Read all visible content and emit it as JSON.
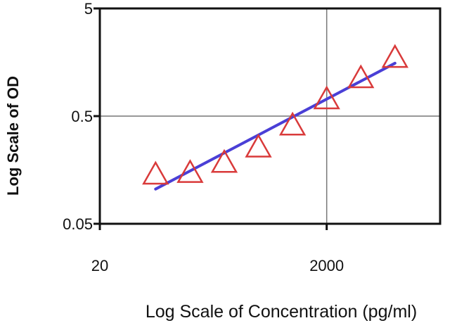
{
  "chart_data": {
    "type": "scatter",
    "xlabel": "Log Scale of Concentration  (pg/ml)",
    "ylabel": "Log Scale of OD",
    "x_scale": "log",
    "y_scale": "log",
    "xlim": [
      20,
      20000
    ],
    "ylim": [
      0.05,
      5
    ],
    "x_ticks": [
      {
        "value": 20,
        "label": "20"
      },
      {
        "value": 2000,
        "label": "2000"
      }
    ],
    "y_ticks": [
      {
        "value": 0.05,
        "label": "0.05"
      },
      {
        "value": 0.5,
        "label": "0.5"
      },
      {
        "value": 5,
        "label": "5"
      }
    ],
    "grid": true,
    "series": [
      {
        "marker": "triangle",
        "color": "#d93a3a",
        "points": [
          {
            "x": 62,
            "y": 0.14
          },
          {
            "x": 125,
            "y": 0.145
          },
          {
            "x": 250,
            "y": 0.18
          },
          {
            "x": 500,
            "y": 0.25
          },
          {
            "x": 1000,
            "y": 0.4
          },
          {
            "x": 2000,
            "y": 0.7
          },
          {
            "x": 4000,
            "y": 1.1
          },
          {
            "x": 8000,
            "y": 1.7
          }
        ]
      }
    ],
    "fit_line": {
      "color": "#4a3fd6",
      "points": [
        {
          "x": 62,
          "y": 0.105
        },
        {
          "x": 8000,
          "y": 1.55
        }
      ]
    }
  }
}
